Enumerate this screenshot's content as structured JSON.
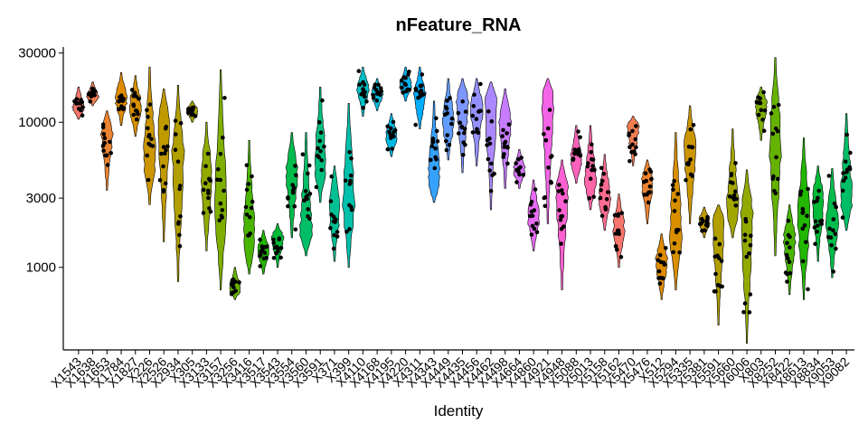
{
  "chart_data": {
    "type": "violin",
    "title": "nFeature_RNA",
    "xlabel": "Identity",
    "ylabel": "",
    "y_scale": "log10",
    "ylim": [
      270,
      33000
    ],
    "y_ticks": [
      1000,
      3000,
      10000,
      30000
    ],
    "y_tick_labels": [
      "1000",
      "3000",
      "10000",
      "30000"
    ],
    "grid": false,
    "legend": "none",
    "categories": [
      "X1543",
      "X1638",
      "X1653",
      "X1784",
      "X1827",
      "X226",
      "X2526",
      "X2934",
      "X305",
      "X3133",
      "X3157",
      "X3256",
      "X3416",
      "X3517",
      "X3543",
      "X3554",
      "X3560",
      "X3591",
      "X371",
      "X399",
      "X4110",
      "X4168",
      "X4195",
      "X4220",
      "X4311",
      "X4343",
      "X4449",
      "X4435",
      "X4456",
      "X4462",
      "X4498",
      "X4664",
      "X4860",
      "X4921",
      "X4948",
      "X5088",
      "X5013",
      "X5158",
      "X5162",
      "X5470",
      "X5476",
      "X512",
      "X5294",
      "X5335",
      "X5381",
      "X5591",
      "X5660",
      "X6006",
      "X803",
      "X8252",
      "X8422",
      "X8613",
      "X8834",
      "X9053",
      "X9082"
    ],
    "colors": [
      "#F8766D",
      "#F27D52",
      "#EA8331",
      "#E08B00",
      "#D89000",
      "#CB9600",
      "#C09B00",
      "#B19F00",
      "#A3A500",
      "#92AA00",
      "#7EAE00",
      "#66B200",
      "#49B500",
      "#22B700",
      "#00BA38",
      "#00BC4C",
      "#00BE67",
      "#00BF7D",
      "#00C094",
      "#00C0AB",
      "#00BFC4",
      "#00BCD8",
      "#00B9E3",
      "#00B3F0",
      "#00ACFC",
      "#35A2FF",
      "#619CFF",
      "#7E96FF",
      "#9590FF",
      "#AB88FF",
      "#C77CFF",
      "#D874FD",
      "#E76BF3",
      "#F364E7",
      "#FD61D1",
      "#FF62BC",
      "#FF66A8",
      "#FF6C91",
      "#F8766D",
      "#F27D52",
      "#EA8331",
      "#E08B00",
      "#D89000",
      "#CB9600",
      "#C09B00",
      "#B19F00",
      "#A3A500",
      "#92AA00",
      "#7EAE00",
      "#66B200",
      "#49B500",
      "#22B700",
      "#00BA38",
      "#00BC4C",
      "#00BE67"
    ],
    "ranges": [
      [
        10500,
        17500
      ],
      [
        13000,
        19000
      ],
      [
        3400,
        12000
      ],
      [
        9500,
        22000
      ],
      [
        8000,
        21000
      ],
      [
        2700,
        24000
      ],
      [
        1500,
        17000
      ],
      [
        800,
        18000
      ],
      [
        10000,
        14000
      ],
      [
        1300,
        10000
      ],
      [
        700,
        23000
      ],
      [
        600,
        1000
      ],
      [
        900,
        7500
      ],
      [
        900,
        1800
      ],
      [
        1000,
        2000
      ],
      [
        1600,
        8500
      ],
      [
        1200,
        8500
      ],
      [
        2800,
        17500
      ],
      [
        1100,
        5000
      ],
      [
        1000,
        13500
      ],
      [
        11000,
        24000
      ],
      [
        12000,
        20000
      ],
      [
        5800,
        11500
      ],
      [
        14000,
        24000
      ],
      [
        9000,
        24000
      ],
      [
        2800,
        14000
      ],
      [
        5500,
        20000
      ],
      [
        4500,
        20000
      ],
      [
        5000,
        20000
      ],
      [
        2500,
        19000
      ],
      [
        3500,
        17000
      ],
      [
        3500,
        6500
      ],
      [
        1300,
        4000
      ],
      [
        2000,
        20000
      ],
      [
        700,
        5500
      ],
      [
        3800,
        9500
      ],
      [
        2500,
        9500
      ],
      [
        1800,
        6000
      ],
      [
        1000,
        3200
      ],
      [
        5000,
        11000
      ],
      [
        2000,
        5500
      ],
      [
        600,
        1700
      ],
      [
        700,
        8500
      ],
      [
        2000,
        13000
      ],
      [
        1600,
        2600
      ],
      [
        400,
        2700
      ],
      [
        1600,
        9000
      ],
      [
        300,
        4700
      ],
      [
        7500,
        17500
      ],
      [
        1200,
        28000
      ],
      [
        650,
        2700
      ],
      [
        600,
        7800
      ],
      [
        1100,
        5000
      ],
      [
        850,
        4800
      ],
      [
        1800,
        11500
      ]
    ],
    "medians": [
      12500,
      15000,
      9000,
      14500,
      13000,
      5500,
      10500,
      6000,
      12000,
      4000,
      2500,
      700,
      1400,
      1300,
      1600,
      4500,
      1700,
      5000,
      2700,
      2800,
      17500,
      15500,
      8000,
      18000,
      15500,
      3800,
      10000,
      14500,
      13000,
      15000,
      11000,
      4700,
      2200,
      16000,
      3600,
      5500,
      3800,
      3000,
      1900,
      9500,
      4000,
      1100,
      1700,
      6500,
      2100,
      2200,
      2400,
      2300,
      13500,
      7500,
      1600,
      2100,
      3000,
      2000,
      2800
    ]
  }
}
